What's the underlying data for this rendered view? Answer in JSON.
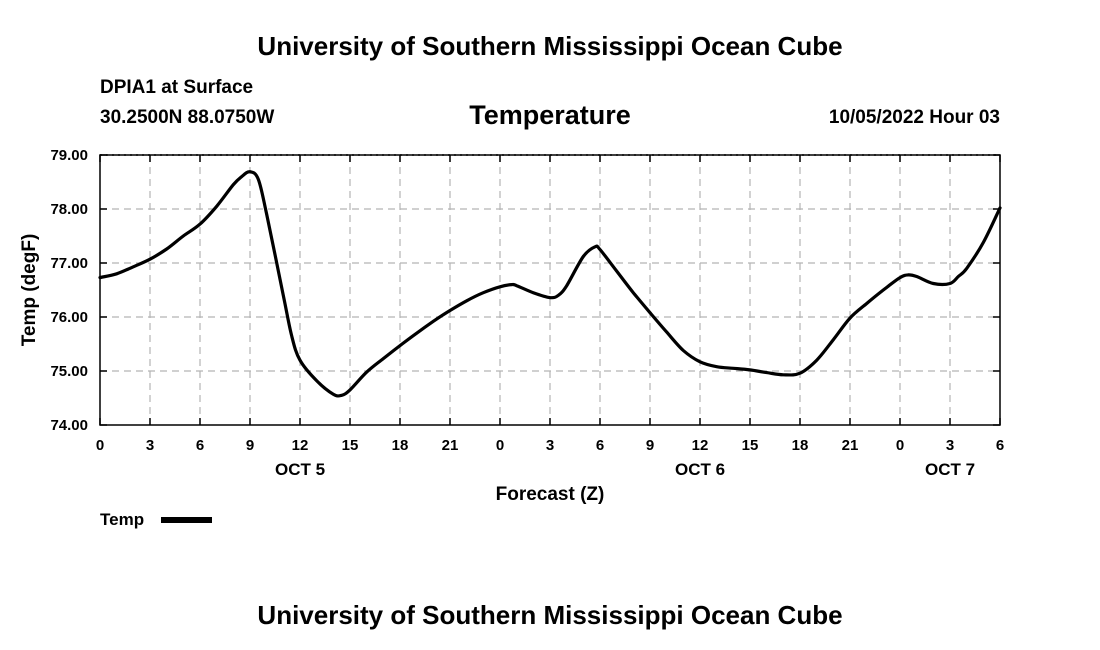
{
  "header": {
    "org_title": "University of Southern Mississippi Ocean Cube",
    "station": "DPIA1 at Surface",
    "location": "30.2500N  88.0750W",
    "timestamp": "10/05/2022 Hour 03"
  },
  "footer": {
    "org_title": "University of Southern Mississippi Ocean Cube"
  },
  "chart_data": {
    "type": "line",
    "title": "Temperature",
    "xlabel": "Forecast (Z)",
    "ylabel": "Temp (degF)",
    "ylim": [
      74.0,
      79.0
    ],
    "yticks": [
      "74.00",
      "75.00",
      "76.00",
      "77.00",
      "78.00",
      "79.00"
    ],
    "xlim": [
      0,
      54
    ],
    "xticks": [
      {
        "h": 0,
        "label": "0"
      },
      {
        "h": 3,
        "label": "3"
      },
      {
        "h": 6,
        "label": "6"
      },
      {
        "h": 9,
        "label": "9"
      },
      {
        "h": 12,
        "label": "12"
      },
      {
        "h": 15,
        "label": "15"
      },
      {
        "h": 18,
        "label": "18"
      },
      {
        "h": 21,
        "label": "21"
      },
      {
        "h": 24,
        "label": "0"
      },
      {
        "h": 27,
        "label": "3"
      },
      {
        "h": 30,
        "label": "6"
      },
      {
        "h": 33,
        "label": "9"
      },
      {
        "h": 36,
        "label": "12"
      },
      {
        "h": 39,
        "label": "15"
      },
      {
        "h": 42,
        "label": "18"
      },
      {
        "h": 45,
        "label": "21"
      },
      {
        "h": 48,
        "label": "0"
      },
      {
        "h": 51,
        "label": "3"
      },
      {
        "h": 54,
        "label": "6"
      }
    ],
    "date_labels": [
      {
        "h": 12,
        "label": "OCT 5"
      },
      {
        "h": 36,
        "label": "OCT 6"
      },
      {
        "h": 51,
        "label": "OCT 7"
      }
    ],
    "grid": true,
    "legend": "bottom-left",
    "series": [
      {
        "name": "Temp",
        "color": "#000000",
        "x": [
          0,
          1,
          2,
          3,
          4,
          5,
          6,
          7,
          8,
          8.5,
          9,
          9.5,
          10,
          11,
          11.5,
          12,
          13,
          14,
          14.5,
          15,
          16,
          17,
          18,
          19,
          20,
          21,
          22,
          23,
          24,
          24.7,
          25,
          26,
          27,
          27.5,
          28,
          29,
          29.7,
          30,
          31,
          32,
          33,
          34,
          35,
          36,
          37,
          38,
          39,
          40,
          41,
          42,
          43,
          44,
          45,
          46,
          47,
          48,
          48.5,
          49,
          50,
          51,
          51.5,
          52,
          53,
          54
        ],
        "y": [
          76.73,
          76.8,
          76.93,
          77.07,
          77.26,
          77.5,
          77.72,
          78.05,
          78.45,
          78.6,
          78.69,
          78.55,
          77.9,
          76.4,
          75.65,
          75.2,
          74.82,
          74.57,
          74.55,
          74.65,
          74.98,
          75.23,
          75.47,
          75.7,
          75.92,
          76.12,
          76.3,
          76.45,
          76.56,
          76.6,
          76.58,
          76.45,
          76.36,
          76.4,
          76.58,
          77.12,
          77.3,
          77.25,
          76.85,
          76.45,
          76.08,
          75.72,
          75.38,
          75.17,
          75.08,
          75.05,
          75.02,
          74.97,
          74.93,
          74.96,
          75.2,
          75.58,
          75.98,
          76.25,
          76.5,
          76.73,
          76.78,
          76.75,
          76.62,
          76.62,
          76.75,
          76.9,
          77.38,
          78.02
        ]
      }
    ]
  }
}
